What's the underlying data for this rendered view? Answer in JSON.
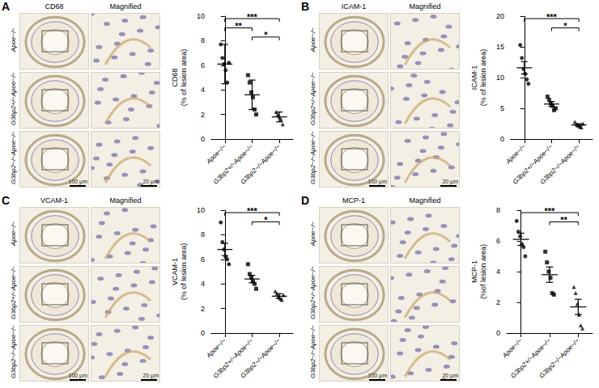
{
  "panels": [
    {
      "letter": "A",
      "image_titles": [
        "CD68",
        "Magnified"
      ],
      "row_labels": [
        "Apoe−/−",
        "G3bp2+/−Apoe−/−",
        "G3bp2−/−Apoe−/−"
      ],
      "scale_bars": [
        "100 μm",
        "20 μm"
      ]
    },
    {
      "letter": "B",
      "image_titles": [
        "ICAM-1",
        "Magnified"
      ],
      "row_labels": [
        "Apoe−/−",
        "G3bp2+/−Apoe−/−",
        "G3bp2−/−Apoe−/−"
      ],
      "scale_bars": [
        "100 μm",
        "20 μm"
      ]
    },
    {
      "letter": "C",
      "image_titles": [
        "VCAM-1",
        "Magnified"
      ],
      "row_labels": [
        "Apoe−/−",
        "G3bp2+/−Apoe−/−",
        "G3bp2−/−Apoe−/−"
      ],
      "scale_bars": [
        "100 μm",
        "20 μm"
      ]
    },
    {
      "letter": "D",
      "image_titles": [
        "MCP-1",
        "Magnified"
      ],
      "row_labels": [
        "Apoe−/−",
        "G3bp2+/−Apoe−/−",
        "G3bp2−/−Apoe−/−"
      ],
      "scale_bars": [
        "100 μm",
        "20 μm"
      ]
    }
  ],
  "chart_data": [
    {
      "type": "scatter",
      "ylabel": "CD68\n(% of lesion area)",
      "categories": [
        "Apoe−/−",
        "G3bp2+/−Apoe−/−",
        "G3bp2−/−Apoe−/−"
      ],
      "values": [
        [
          7.7,
          6.6,
          6.1,
          5.6,
          4.6,
          6.2
        ],
        [
          5.2,
          4.6,
          3.8,
          3.4,
          2.4,
          2.0
        ],
        [
          2.2,
          2.0,
          1.8,
          1.6,
          1.2
        ]
      ],
      "means": [
        6.1,
        3.6,
        1.8
      ],
      "errors": [
        1.6,
        1.2,
        0.4
      ],
      "markers": [
        "circle",
        "square",
        "triangle"
      ],
      "color": "#000000",
      "comparisons": [
        {
          "groups": [
            0,
            2
          ],
          "label": "***"
        },
        {
          "groups": [
            0,
            1
          ],
          "label": "**"
        },
        {
          "groups": [
            1,
            2
          ],
          "label": "*"
        }
      ],
      "ylim": [
        0,
        10
      ],
      "yticks": [
        0,
        2,
        4,
        6,
        8,
        10
      ],
      "grid": false
    },
    {
      "type": "scatter",
      "ylabel": "ICAM-1\n(% of lesion area)",
      "categories": [
        "Apoe−/−",
        "G3bp2+/−Apoe−/−",
        "G3bp2−/−Apoe−/−"
      ],
      "values": [
        [
          15.3,
          13.2,
          11.4,
          10.6,
          9.7,
          9.0
        ],
        [
          6.9,
          6.4,
          5.8,
          5.4,
          4.7,
          5.0
        ],
        [
          2.8,
          2.4,
          2.2,
          2.0,
          1.9,
          2.5
        ]
      ],
      "means": [
        11.6,
        5.7,
        2.3
      ],
      "errors": [
        1.0,
        0.4,
        0.2
      ],
      "markers": [
        "circle",
        "square",
        "triangle"
      ],
      "color": "#000000",
      "comparisons": [
        {
          "groups": [
            0,
            2
          ],
          "label": "***"
        },
        {
          "groups": [
            1,
            2
          ],
          "label": "*"
        }
      ],
      "ylim": [
        0,
        20
      ],
      "yticks": [
        0,
        5,
        10,
        15,
        20
      ],
      "grid": false
    },
    {
      "type": "scatter",
      "ylabel": "VCAM-1\n(% of lesion area)",
      "categories": [
        "Apoe−/−",
        "G3bp2+/−Apoe−/−",
        "G3bp2−/−Apoe−/−"
      ],
      "values": [
        [
          9.0,
          7.4,
          6.8,
          6.2,
          6.0,
          5.6
        ],
        [
          5.6,
          4.8,
          4.5,
          4.2,
          4.0,
          3.6
        ],
        [
          3.4,
          3.2,
          3.0,
          2.8,
          2.7,
          3.1
        ]
      ],
      "means": [
        6.8,
        4.4,
        3.0
      ],
      "errors": [
        0.5,
        0.3,
        0.2
      ],
      "markers": [
        "circle",
        "square",
        "triangle"
      ],
      "color": "#000000",
      "comparisons": [
        {
          "groups": [
            0,
            2
          ],
          "label": "***"
        },
        {
          "groups": [
            1,
            2
          ],
          "label": "*"
        }
      ],
      "ylim": [
        0,
        10
      ],
      "yticks": [
        0,
        2,
        4,
        6,
        8,
        10
      ],
      "grid": false
    },
    {
      "type": "scatter",
      "ylabel": "MCP-1\n(%of lesion area)",
      "categories": [
        "Apoe−/−",
        "G3bp2+/−Apoe−/−",
        "G3bp2−/−Apoe−/−"
      ],
      "values": [
        [
          7.3,
          6.6,
          6.3,
          5.8,
          5.6,
          5.0
        ],
        [
          5.3,
          4.6,
          4.0,
          3.6,
          2.6,
          2.5
        ],
        [
          3.0,
          2.6,
          1.9,
          1.2,
          0.5,
          0.3
        ]
      ],
      "means": [
        6.1,
        3.8,
        1.7
      ],
      "errors": [
        0.4,
        0.5,
        0.5
      ],
      "markers": [
        "circle",
        "square",
        "triangle"
      ],
      "color": "#000000",
      "comparisons": [
        {
          "groups": [
            0,
            2
          ],
          "label": "***"
        },
        {
          "groups": [
            1,
            2
          ],
          "label": "**"
        }
      ],
      "ylim": [
        0,
        8
      ],
      "yticks": [
        0,
        2,
        4,
        6,
        8
      ],
      "grid": false
    }
  ]
}
